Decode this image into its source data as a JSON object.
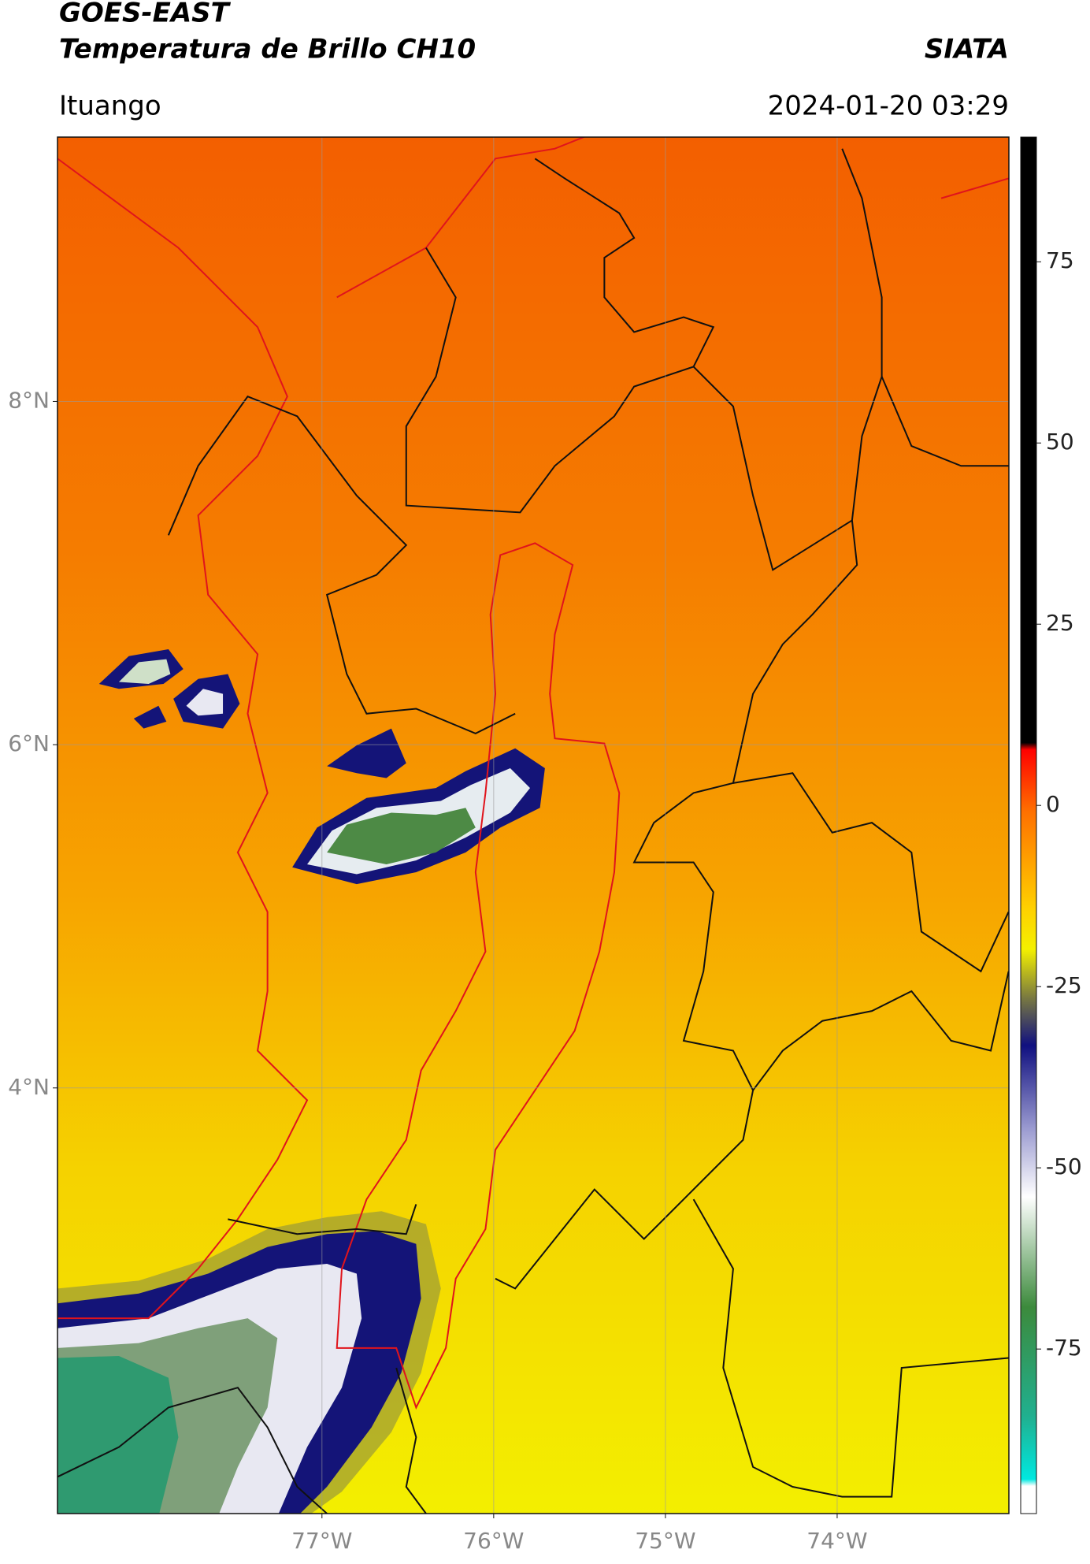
{
  "header": {
    "title": "GOES-EAST",
    "subtitle": "Temperatura de Brillo CH10",
    "brand": "SIATA",
    "location": "Ituango",
    "datetime": "2024-01-20 03:29"
  },
  "map": {
    "lon_range": [
      -78.54,
      -73.0
    ],
    "lat_range": [
      1.52,
      9.54
    ],
    "lat_ticks": [
      {
        "value": 8,
        "label": "8°N"
      },
      {
        "value": 6,
        "label": "6°N"
      },
      {
        "value": 4,
        "label": "4°N"
      }
    ],
    "lon_ticks": [
      {
        "value": -77,
        "label": "77°W"
      },
      {
        "value": -76,
        "label": "76°W"
      },
      {
        "value": -75,
        "label": "75°W"
      },
      {
        "value": -74,
        "label": "74°W"
      }
    ]
  },
  "colorbar": {
    "range": [
      -97.7,
      92.2
    ],
    "ticks": [
      75,
      50,
      25,
      0,
      -25,
      -50,
      -75
    ]
  }
}
